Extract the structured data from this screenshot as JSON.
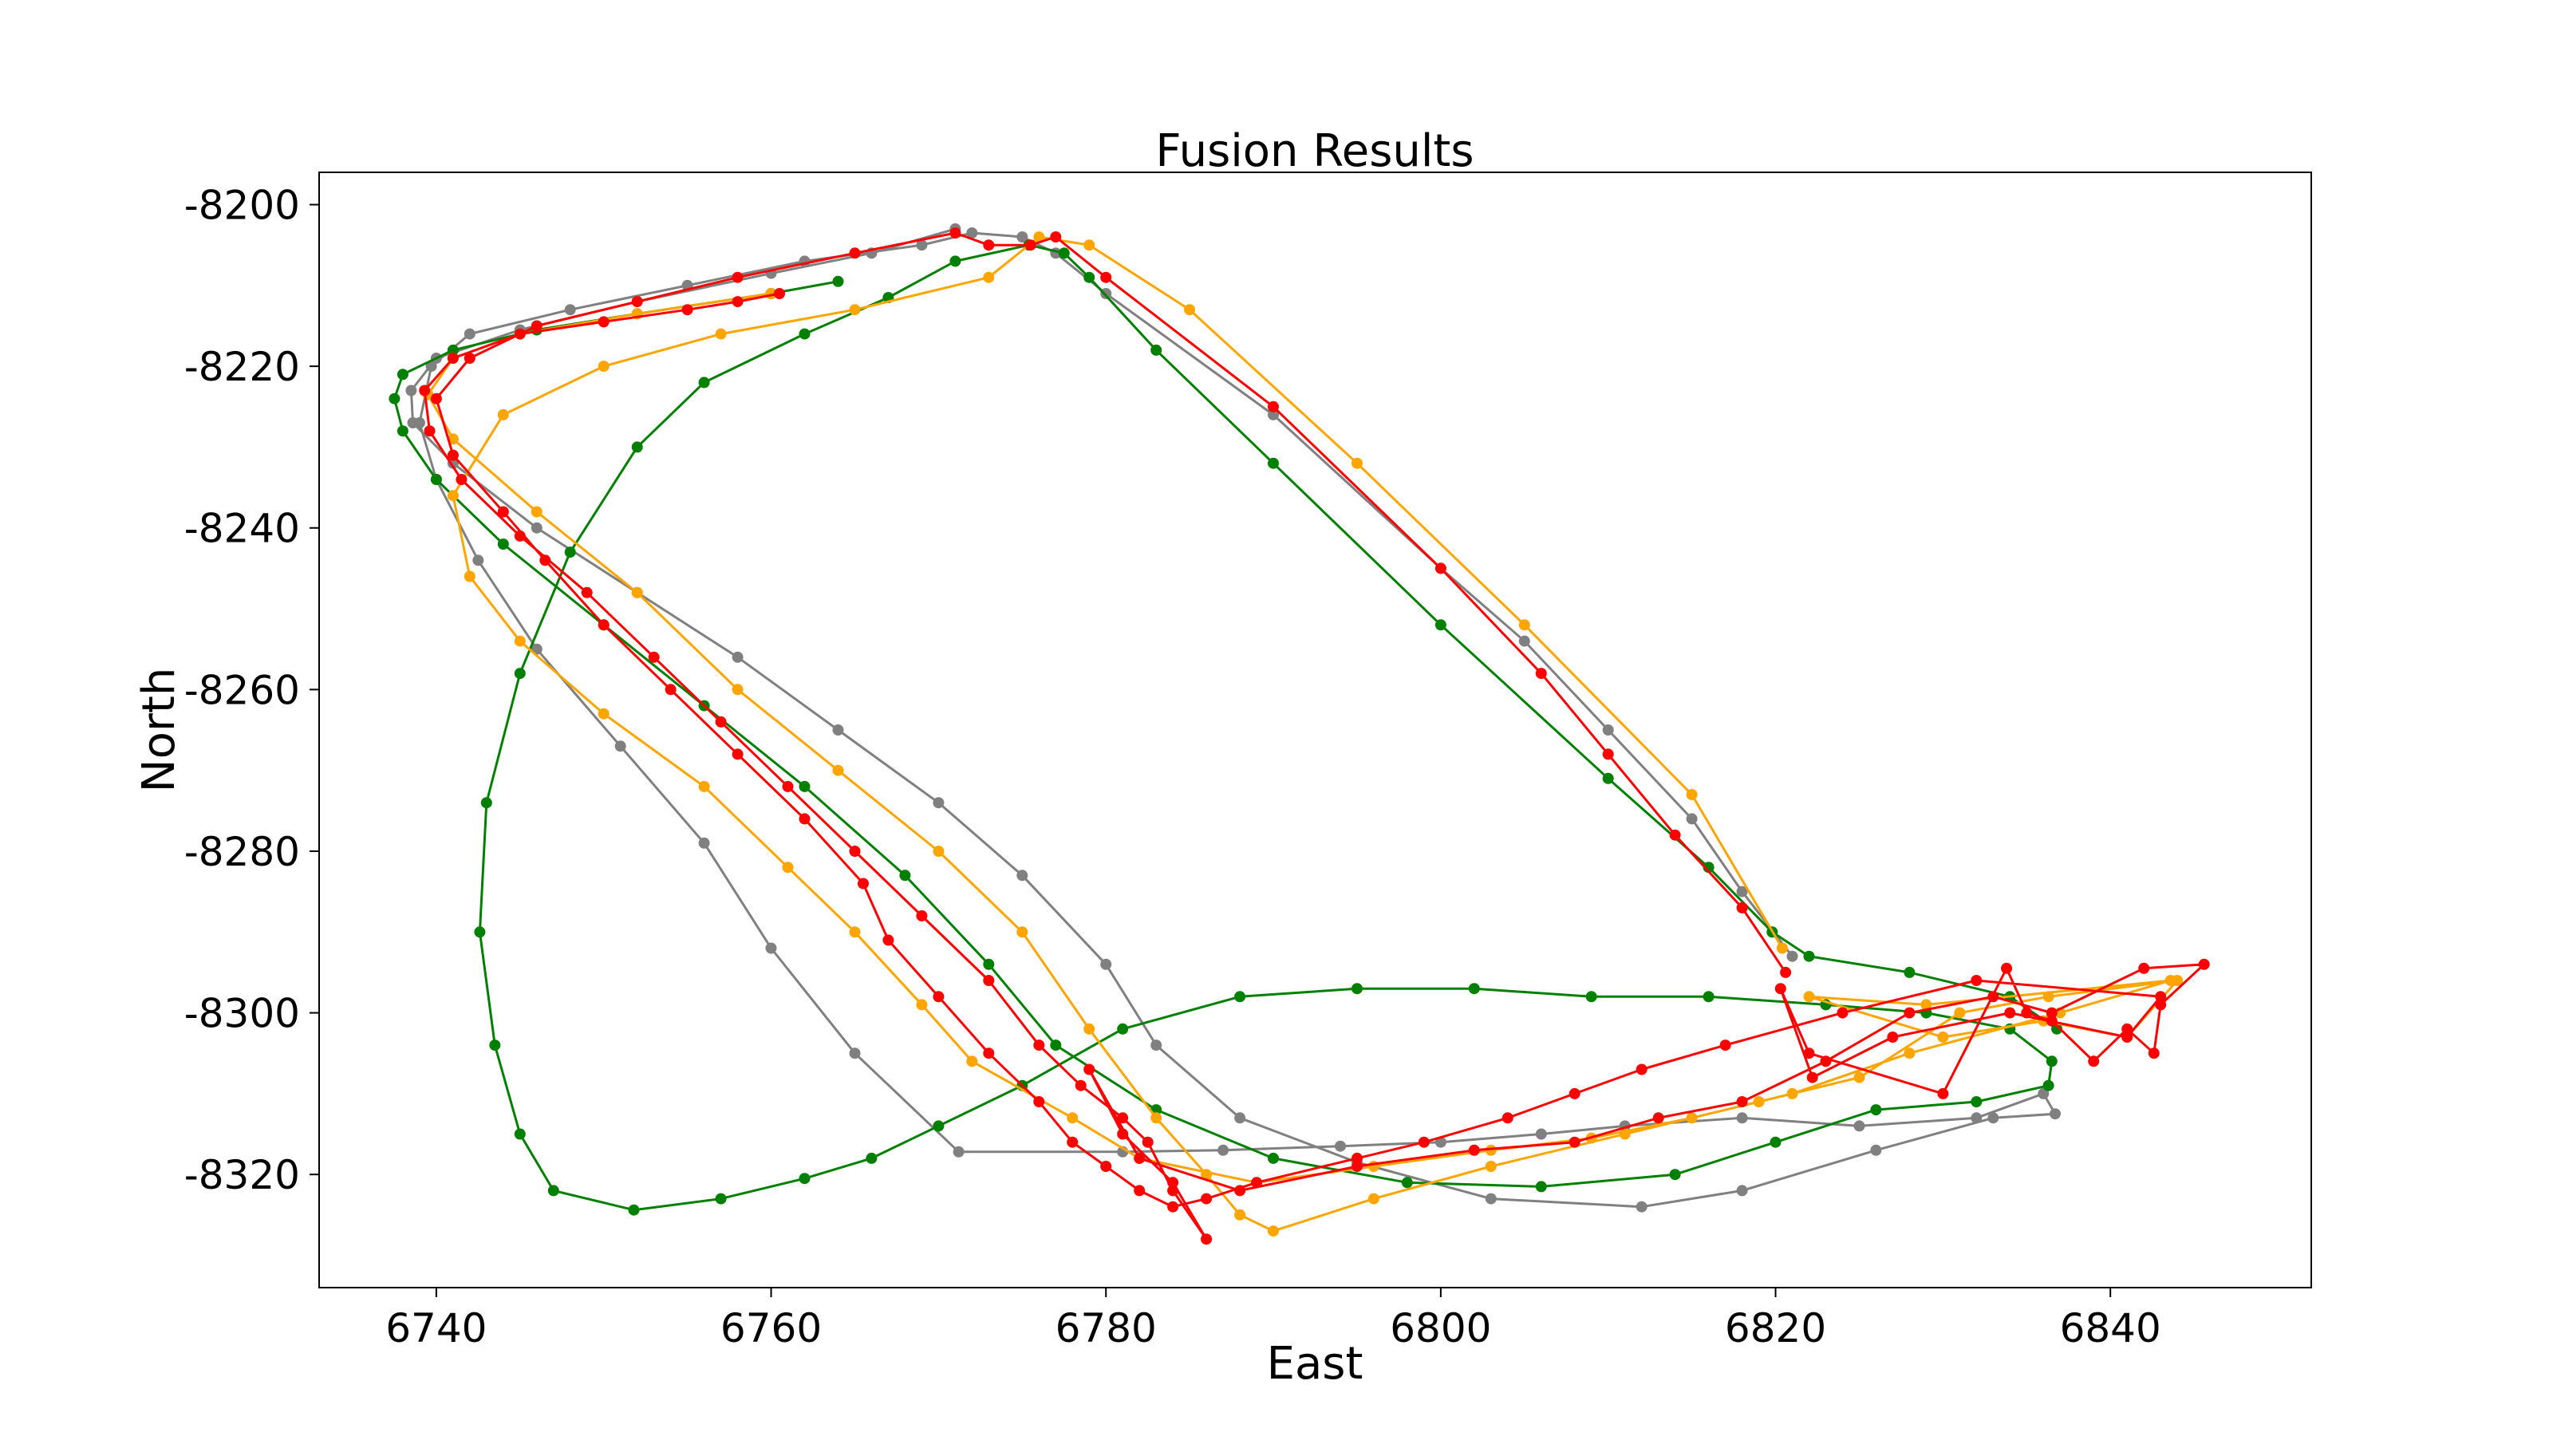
{
  "chart_data": {
    "type": "line",
    "title": "Fusion Results",
    "xlabel": "East",
    "ylabel": "North",
    "xlim": [
      6733,
      6852
    ],
    "ylim": [
      -8334,
      -8196
    ],
    "xticks": [
      6740,
      6760,
      6780,
      6800,
      6820,
      6840
    ],
    "yticks": [
      -8200,
      -8220,
      -8240,
      -8260,
      -8280,
      -8300,
      -8320
    ],
    "xtick_labels": [
      "6740",
      "6760",
      "6780",
      "6800",
      "6820",
      "6840"
    ],
    "ytick_labels": [
      "-8200",
      "-8220",
      "-8240",
      "-8260",
      "-8280",
      "-8300",
      "-8320"
    ],
    "grid": false,
    "series": [
      {
        "color": "#808080",
        "x": [
          6771,
          6766,
          6760,
          6752,
          6745,
          6740,
          6738.5,
          6738.6,
          6741,
          6746,
          6752,
          6758,
          6764,
          6770,
          6775,
          6780,
          6783,
          6788,
          6795,
          6803,
          6812,
          6818,
          6826,
          6833,
          6836.7,
          6836,
          6832,
          6825,
          6818,
          6811,
          6806,
          6800,
          6794,
          6787,
          6781,
          6771.2,
          6765,
          6760,
          6756,
          6751,
          6746,
          6742.5,
          6740,
          6739,
          6739.7,
          6742,
          6748,
          6755,
          6762,
          6769,
          6772,
          6775,
          6777,
          6780,
          6790,
          6800,
          6805,
          6810,
          6815,
          6818,
          6821
        ],
        "y": [
          -8203,
          -8206,
          -8208.5,
          -8212,
          -8215.5,
          -8219,
          -8223,
          -8227,
          -8232,
          -8240,
          -8248,
          -8256,
          -8265,
          -8274,
          -8283,
          -8294,
          -8304,
          -8313,
          -8318.5,
          -8323,
          -8324,
          -8322,
          -8317,
          -8313,
          -8312.5,
          -8310,
          -8313,
          -8314,
          -8313,
          -8314,
          -8315,
          -8316,
          -8316.5,
          -8317,
          -8317.2,
          -8317.2,
          -8305,
          -8292,
          -8279,
          -8267,
          -8255,
          -8244,
          -8234,
          -8227,
          -8220,
          -8216,
          -8213,
          -8210,
          -8207,
          -8205,
          -8203.5,
          -8204,
          -8206,
          -8211,
          -8226,
          -8245,
          -8254,
          -8265,
          -8276,
          -8285,
          -8293
        ]
      },
      {
        "color": "#008000",
        "x": [
          6764,
          6760,
          6752,
          6746,
          6741,
          6738,
          6737.5,
          6738,
          6740,
          6744,
          6750,
          6756,
          6762,
          6768,
          6773,
          6777,
          6783,
          6790,
          6798,
          6806,
          6814,
          6820,
          6826,
          6832,
          6836.3,
          6836.5,
          6834,
          6829,
          6823,
          6816,
          6809,
          6802,
          6795,
          6788,
          6781,
          6775,
          6770,
          6766,
          6762,
          6757,
          6751.8,
          6747,
          6745,
          6743.5,
          6742.6,
          6743,
          6745,
          6748,
          6752,
          6756,
          6762,
          6767,
          6771,
          6775.4,
          6777.5,
          6779,
          6783,
          6790,
          6800,
          6810,
          6816,
          6819.8,
          6822,
          6828,
          6834,
          6836.8
        ],
        "y": [
          -8209.5,
          -8211,
          -8213.5,
          -8215.5,
          -8218,
          -8221,
          -8224,
          -8228,
          -8234,
          -8242,
          -8252,
          -8262,
          -8272,
          -8283,
          -8294,
          -8304,
          -8312,
          -8318,
          -8321,
          -8321.5,
          -8320,
          -8316,
          -8312,
          -8311,
          -8309,
          -8306,
          -8302,
          -8300,
          -8299,
          -8298,
          -8298,
          -8297,
          -8297,
          -8298,
          -8302,
          -8309,
          -8314,
          -8318,
          -8320.5,
          -8323,
          -8324.4,
          -8322,
          -8315,
          -8304,
          -8290,
          -8274,
          -8258,
          -8243,
          -8230,
          -8222,
          -8216,
          -8211.5,
          -8207,
          -8205,
          -8206,
          -8209,
          -8218,
          -8232,
          -8252,
          -8271,
          -8282,
          -8290,
          -8293,
          -8295,
          -8298,
          -8302
        ]
      },
      {
        "color": "#ffa500",
        "x": [
          6760,
          6752,
          6745,
          6741,
          6739.5,
          6741,
          6746,
          6752,
          6758,
          6764,
          6770,
          6775,
          6779,
          6783,
          6786,
          6788,
          6790,
          6796,
          6803,
          6811,
          6819,
          6825,
          6831,
          6836.3,
          6844,
          6841,
          6836,
          6830,
          6822,
          6829,
          6843.6,
          6837,
          6828,
          6821,
          6815,
          6809,
          6803,
          6796,
          6789,
          6782,
          6778,
          6772,
          6769,
          6765,
          6761,
          6756,
          6750,
          6745,
          6742,
          6741,
          6744,
          6750,
          6757,
          6765,
          6773,
          6776,
          6779,
          6785,
          6795,
          6805,
          6815,
          6820.4
        ],
        "y": [
          -8211,
          -8213.5,
          -8216,
          -8219,
          -8223.5,
          -8229,
          -8238,
          -8248,
          -8260,
          -8270,
          -8280,
          -8290,
          -8302,
          -8313,
          -8320,
          -8325,
          -8327,
          -8323,
          -8319,
          -8315,
          -8311,
          -8308,
          -8300,
          -8298,
          -8296,
          -8303,
          -8301,
          -8303,
          -8298,
          -8299,
          -8296,
          -8300,
          -8305,
          -8310,
          -8313,
          -8315.5,
          -8317,
          -8319,
          -8321,
          -8318,
          -8313,
          -8306,
          -8299,
          -8290,
          -8282,
          -8272,
          -8263,
          -8254,
          -8246,
          -8236,
          -8226,
          -8220,
          -8216,
          -8213,
          -8209,
          -8204,
          -8205,
          -8213,
          -8232,
          -8252,
          -8273,
          -8292
        ]
      },
      {
        "color": "#ff0000",
        "x": [
          6760.5,
          6758,
          6755,
          6750,
          6745,
          6741,
          6739.3,
          6739.6,
          6741.5,
          6745,
          6749,
          6753,
          6757,
          6761,
          6765,
          6769,
          6773,
          6776,
          6778.5,
          6781,
          6782.5,
          6784,
          6786,
          6784,
          6781,
          6779,
          6782,
          6788,
          6795,
          6802,
          6808,
          6813,
          6818,
          6823,
          6828,
          6833,
          6836.5,
          6842,
          6845.6,
          6843,
          6842.6,
          6841,
          6839,
          6836.5,
          6835,
          6833.8,
          6830,
          6822,
          6820.3,
          6822.2,
          6827,
          6834,
          6841,
          6843,
          6832,
          6824,
          6817,
          6812,
          6808,
          6804,
          6799,
          6795,
          6789,
          6786,
          6784,
          6782,
          6780,
          6778,
          6776,
          6773,
          6770,
          6767,
          6765.5,
          6762,
          6758,
          6754,
          6750,
          6746.5,
          6744,
          6741,
          6740,
          6742,
          6746,
          6752,
          6758,
          6765,
          6771,
          6773,
          6775.5,
          6777,
          6780,
          6790,
          6800,
          6806,
          6810,
          6814,
          6818,
          6820.6
        ],
        "y": [
          -8211,
          -8212,
          -8213,
          -8214.5,
          -8216,
          -8219,
          -8223,
          -8228,
          -8234,
          -8241,
          -8248,
          -8256,
          -8264,
          -8272,
          -8280,
          -8288,
          -8296,
          -8304,
          -8309,
          -8313,
          -8316,
          -8322,
          -8328,
          -8321,
          -8315,
          -8307,
          -8318,
          -8322,
          -8319,
          -8317,
          -8316,
          -8313,
          -8311,
          -8306,
          -8300,
          -8298,
          -8300,
          -8294.5,
          -8294,
          -8299,
          -8305,
          -8302,
          -8306,
          -8301,
          -8300,
          -8294.5,
          -8310,
          -8305,
          -8297,
          -8308,
          -8303,
          -8300,
          -8303,
          -8298,
          -8296,
          -8300,
          -8304,
          -8307,
          -8310,
          -8313,
          -8316,
          -8318,
          -8321,
          -8323,
          -8324,
          -8322,
          -8319,
          -8316,
          -8311,
          -8305,
          -8298,
          -8291,
          -8284,
          -8276,
          -8268,
          -8260,
          -8252,
          -8244,
          -8238,
          -8231,
          -8224,
          -8219,
          -8215,
          -8212,
          -8209,
          -8206,
          -8203.5,
          -8205,
          -8205,
          -8204,
          -8209,
          -8225,
          -8245,
          -8258,
          -8268,
          -8278,
          -8287,
          -8295
        ]
      }
    ]
  }
}
